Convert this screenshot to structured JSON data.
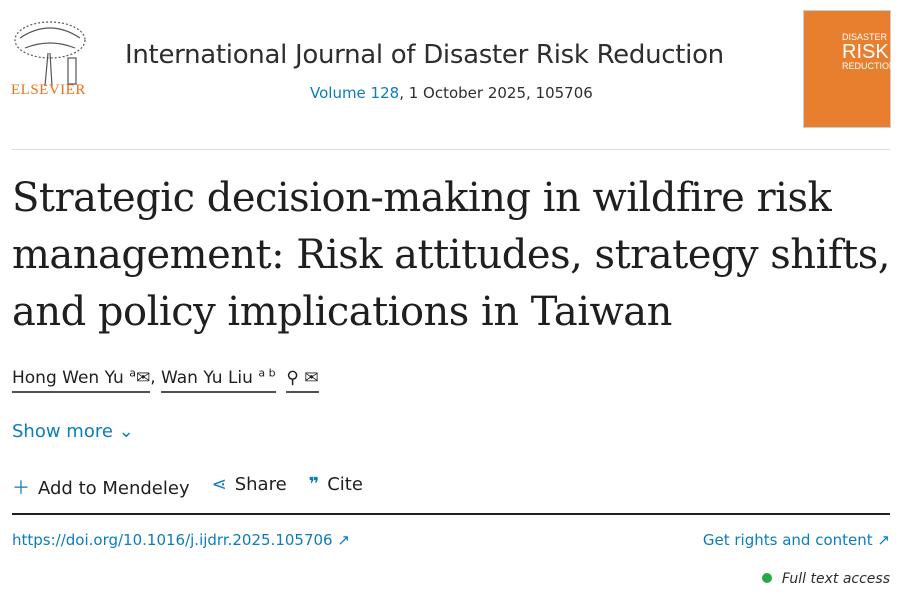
{
  "publisher": {
    "name": "ELSEVIER"
  },
  "journal": {
    "title": "International Journal of Disaster Risk Reduction",
    "volume_link": "Volume 128",
    "date_id": ", 1 October 2025, 105706",
    "cover_small": "DISASTER",
    "cover_big": "RISK",
    "cover_sub": "REDUCTION"
  },
  "article": {
    "title": "Strategic decision-making in wildfire risk management: Risk attitudes, strategy shifts, and policy implications in Taiwan"
  },
  "authors": [
    {
      "name": "Hong Wen Yu",
      "sup": "a"
    },
    {
      "name": "Wan Yu Liu",
      "sup": "a b"
    }
  ],
  "show_more": "Show more",
  "actions": {
    "mendeley": "Add to Mendeley",
    "share": "Share",
    "cite": "Cite"
  },
  "links": {
    "doi": "https://doi.org/10.1016/j.ijdrr.2025.105706",
    "rights": "Get rights and content"
  },
  "access": {
    "label": "Full text access",
    "color": "#29a745"
  }
}
